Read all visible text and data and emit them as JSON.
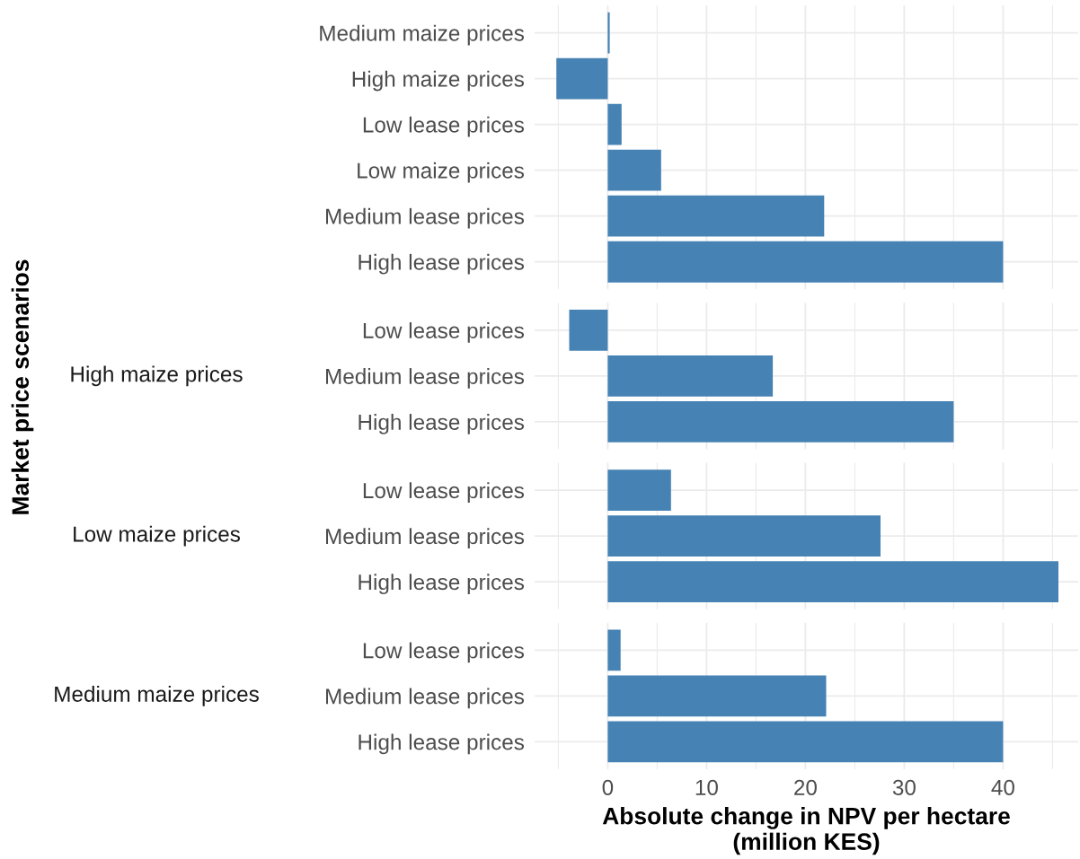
{
  "chart_data": [
    {
      "type": "bar",
      "orientation": "horizontal",
      "ylabel": "Market price scenarios",
      "categories": [
        "Medium maize prices",
        "High maize prices",
        "Low lease prices",
        "Low maize prices",
        "Medium lease prices",
        "High lease prices"
      ],
      "values": [
        0.2,
        -5.2,
        1.4,
        5.4,
        21.9,
        40.0
      ],
      "color": "#4682b4",
      "xlim": [
        -7.4,
        47.6
      ],
      "xticks": [
        {
          "value": -5,
          "label": null
        },
        0,
        {
          "value": 5,
          "label": null
        },
        10,
        {
          "value": 15,
          "label": null
        },
        20,
        {
          "value": 25,
          "label": null
        },
        30,
        {
          "value": 35,
          "label": null
        },
        40,
        {
          "value": 45,
          "label": null
        }
      ],
      "grid": true,
      "tick_labels": "y"
    },
    {
      "type": "bar",
      "orientation": "horizontal",
      "title": "High maize prices",
      "categories": [
        "Low lease prices",
        "Medium lease prices",
        "High lease prices"
      ],
      "values": [
        -3.9,
        16.7,
        35.0
      ],
      "color": "#4682b4",
      "xlim": [
        -7.4,
        47.6
      ],
      "xticks": [
        {
          "value": -5,
          "label": null
        },
        0,
        {
          "value": 5,
          "label": null
        },
        10,
        {
          "value": 15,
          "label": null
        },
        20,
        {
          "value": 25,
          "label": null
        },
        30,
        {
          "value": 35,
          "label": null
        },
        40,
        {
          "value": 45,
          "label": null
        }
      ],
      "grid": true,
      "tick_labels": "y"
    },
    {
      "type": "bar",
      "orientation": "horizontal",
      "title": "Low maize prices",
      "categories": [
        "Low lease prices",
        "Medium lease prices",
        "High lease prices"
      ],
      "values": [
        6.4,
        27.6,
        45.6
      ],
      "color": "#4682b4",
      "xlim": [
        -7.4,
        47.6
      ],
      "xticks": [
        {
          "value": -5,
          "label": null
        },
        0,
        {
          "value": 5,
          "label": null
        },
        10,
        {
          "value": 15,
          "label": null
        },
        20,
        {
          "value": 25,
          "label": null
        },
        30,
        {
          "value": 35,
          "label": null
        },
        40,
        {
          "value": 45,
          "label": null
        }
      ],
      "grid": true,
      "tick_labels": "y"
    },
    {
      "type": "bar",
      "orientation": "horizontal",
      "title": "Medium maize prices",
      "xlabel": "Absolute change in NPV per hectare\n(million KES)",
      "categories": [
        "Low lease prices",
        "Medium lease prices",
        "High lease prices"
      ],
      "values": [
        1.3,
        22.1,
        40.0
      ],
      "color": "#4682b4",
      "xlim": [
        -7.4,
        47.6
      ],
      "xticks": [
        {
          "value": -5,
          "label": null
        },
        0,
        {
          "value": 5,
          "label": null
        },
        10,
        {
          "value": 15,
          "label": null
        },
        20,
        {
          "value": 25,
          "label": null
        },
        30,
        {
          "value": 35,
          "label": null
        },
        40,
        {
          "value": 45,
          "label": null
        }
      ],
      "grid": true
    }
  ]
}
